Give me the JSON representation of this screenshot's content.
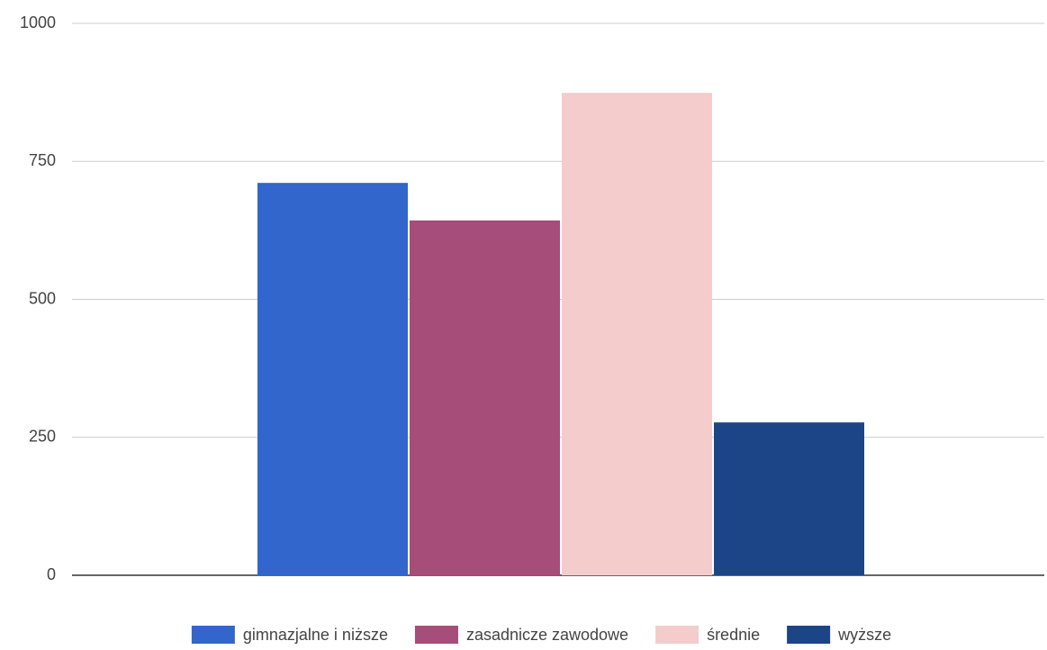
{
  "chart_data": {
    "type": "bar",
    "categories": [
      null
    ],
    "series": [
      {
        "name": "gimnazjalne i niższe",
        "color": "#3366cc",
        "values": [
          711
        ]
      },
      {
        "name": "zasadnicze zawodowe",
        "color": "#a64d79",
        "values": [
          643
        ]
      },
      {
        "name": "średnie",
        "color": "#f4cccc",
        "values": [
          874
        ]
      },
      {
        "name": "wyższe",
        "color": "#1c4587",
        "values": [
          277
        ]
      }
    ],
    "ylim": [
      0,
      1000
    ],
    "yticks": [
      0,
      250,
      500,
      750,
      1000
    ],
    "grid": true,
    "legend": "bottom"
  }
}
